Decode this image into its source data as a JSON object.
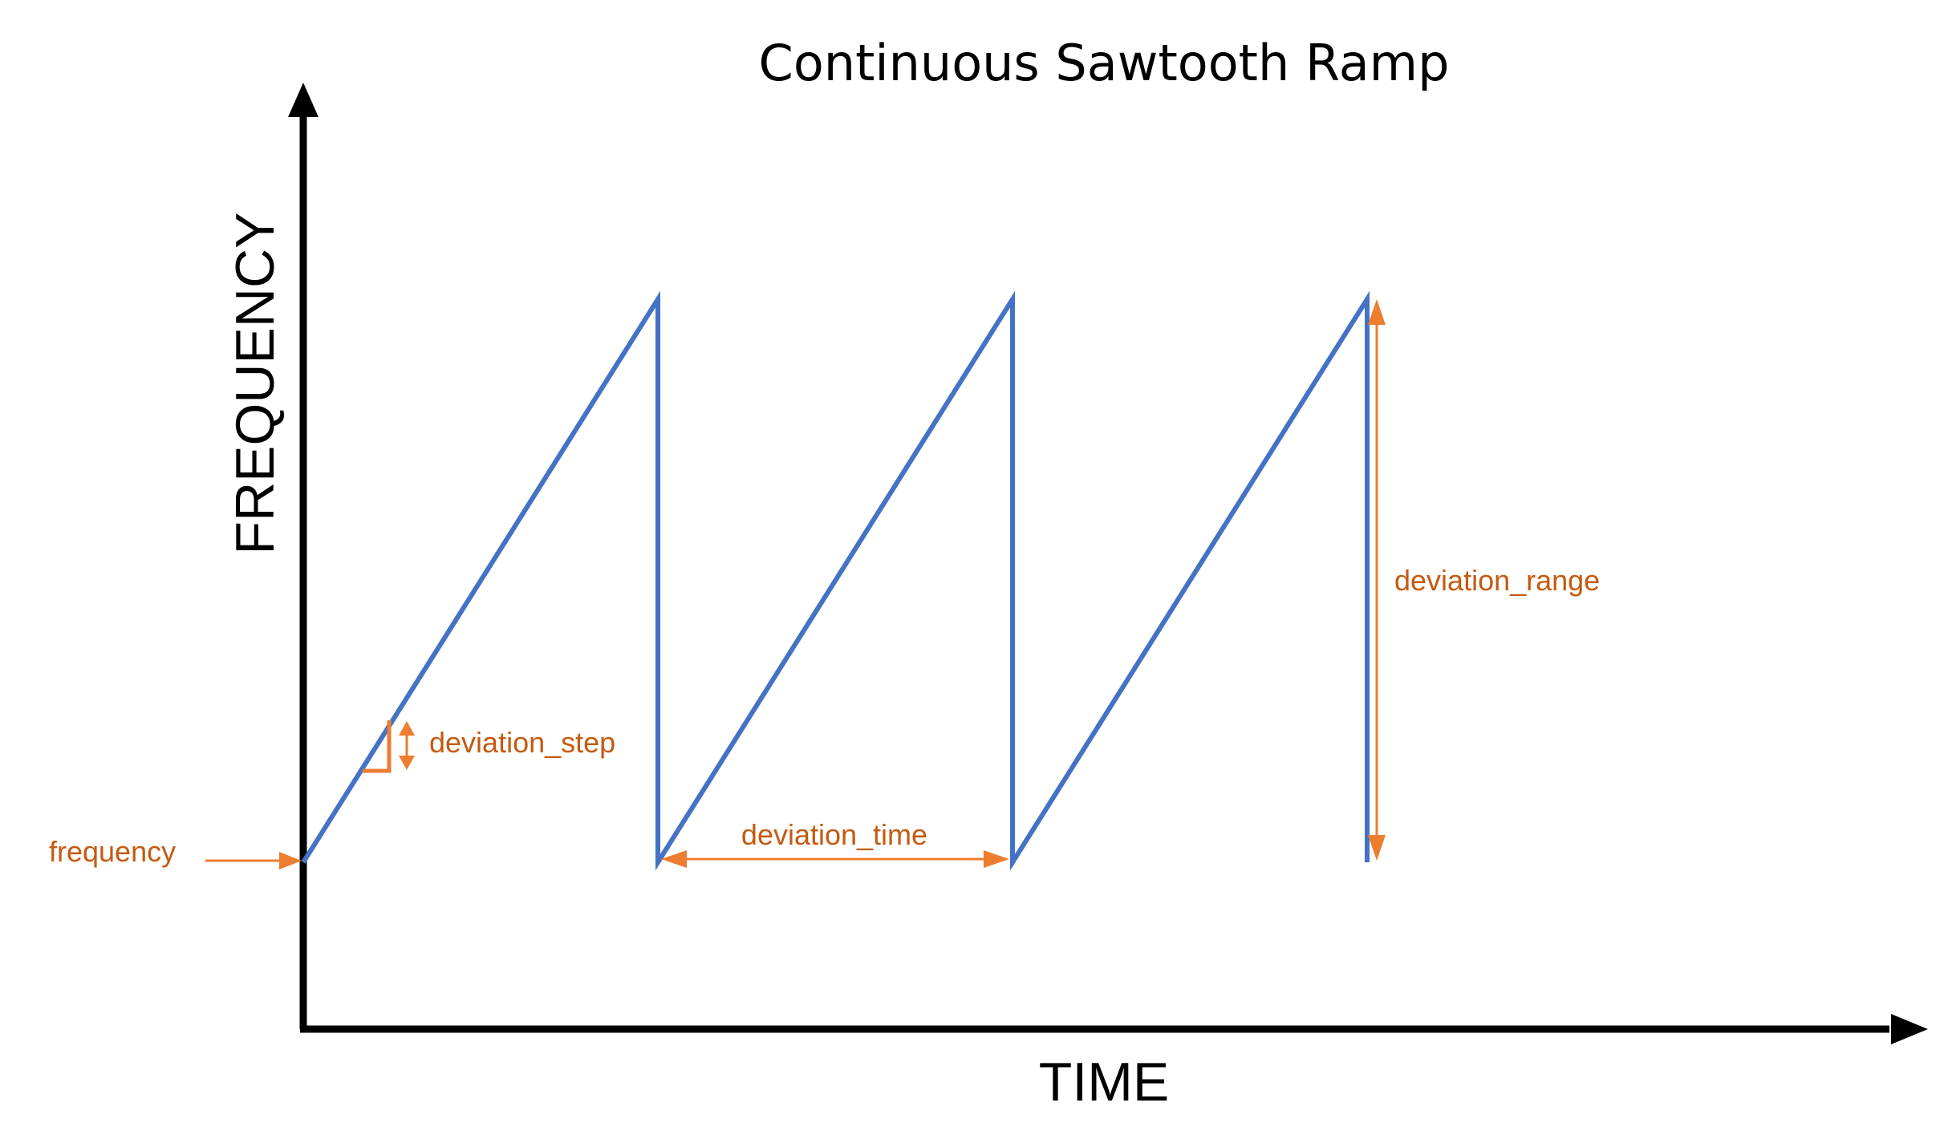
{
  "title": "Continuous Sawtooth Ramp",
  "axes": {
    "x_label": "TIME",
    "y_label": "FREQUENCY"
  },
  "annotations": {
    "frequency": "frequency",
    "deviation_step": "deviation_step",
    "deviation_time": "deviation_time",
    "deviation_range": "deviation_range"
  },
  "colors": {
    "waveform": "#4472C4",
    "annotation": "#ED7D31",
    "annotation_text": "#C55A11",
    "axis": "#000000"
  },
  "waveform": {
    "shape": "sawtooth",
    "cycles": 3
  }
}
